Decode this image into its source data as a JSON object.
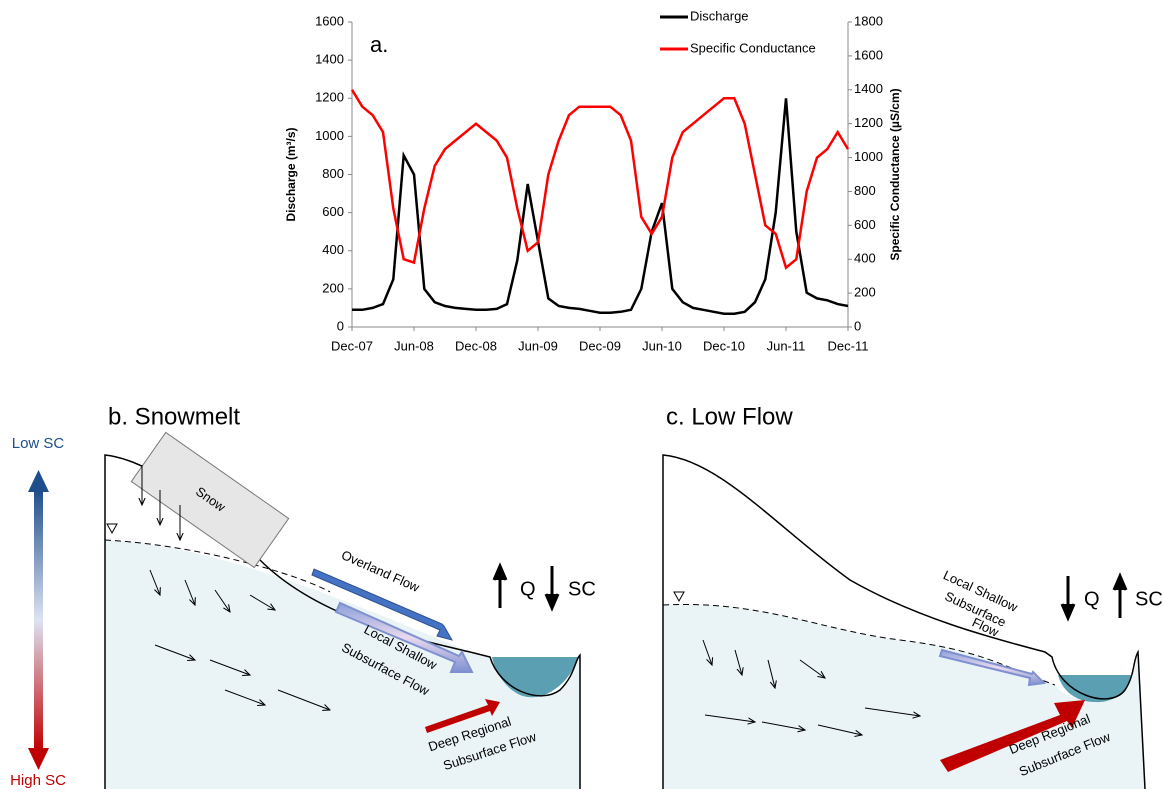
{
  "chart_data": {
    "type": "line",
    "panel_label": "a.",
    "y_label": "Discharge (m³/s)",
    "y2_label": "Specific Conductance (µS/cm)",
    "x": [
      "Dec-07",
      "Jan-08",
      "Feb-08",
      "Mar-08",
      "Apr-08",
      "May-08",
      "Jun-08",
      "Jul-08",
      "Aug-08",
      "Sep-08",
      "Oct-08",
      "Nov-08",
      "Dec-08",
      "Jan-09",
      "Feb-09",
      "Mar-09",
      "Apr-09",
      "May-09",
      "Jun-09",
      "Jul-09",
      "Aug-09",
      "Sep-09",
      "Oct-09",
      "Nov-09",
      "Dec-09",
      "Jan-10",
      "Feb-10",
      "Mar-10",
      "Apr-10",
      "May-10",
      "Jun-10",
      "Jul-10",
      "Aug-10",
      "Sep-10",
      "Oct-10",
      "Nov-10",
      "Dec-10",
      "Jan-11",
      "Feb-11",
      "Mar-11",
      "Apr-11",
      "May-11",
      "Jun-11",
      "Jul-11",
      "Aug-11",
      "Sep-11",
      "Oct-11",
      "Nov-11",
      "Dec-11"
    ],
    "xticks": [
      "Dec-07",
      "Jun-08",
      "Dec-08",
      "Jun-09",
      "Dec-09",
      "Jun-10",
      "Dec-10",
      "Jun-11",
      "Dec-11"
    ],
    "series": [
      {
        "name": "Discharge",
        "color": "#000000",
        "axis": "y",
        "values": [
          90,
          90,
          100,
          120,
          250,
          900,
          800,
          200,
          130,
          110,
          100,
          95,
          90,
          90,
          95,
          120,
          350,
          750,
          450,
          150,
          110,
          100,
          95,
          85,
          75,
          75,
          80,
          90,
          200,
          500,
          650,
          200,
          130,
          100,
          90,
          80,
          70,
          70,
          80,
          130,
          250,
          600,
          1200,
          500,
          180,
          150,
          140,
          120,
          110
        ]
      },
      {
        "name": "Specific Conductance",
        "color": "#ff0000",
        "axis": "y2",
        "values": [
          1400,
          1300,
          1250,
          1150,
          700,
          400,
          380,
          700,
          950,
          1050,
          1100,
          1150,
          1200,
          1150,
          1100,
          1000,
          700,
          450,
          500,
          900,
          1100,
          1250,
          1300,
          1300,
          1300,
          1300,
          1250,
          1100,
          650,
          550,
          650,
          1000,
          1150,
          1200,
          1250,
          1300,
          1350,
          1350,
          1200,
          900,
          600,
          550,
          350,
          400,
          800,
          1000,
          1050,
          1150,
          1050
        ]
      }
    ],
    "ylim": [
      0,
      1600
    ],
    "yticks": [
      0,
      200,
      400,
      600,
      800,
      1000,
      1200,
      1400,
      1600
    ],
    "y2lim": [
      0,
      1800
    ],
    "y2ticks": [
      0,
      200,
      400,
      600,
      800,
      1000,
      1200,
      1400,
      1600,
      1800
    ],
    "grid": false,
    "legend": "top-right"
  },
  "diagrams": {
    "scale": {
      "top": "Low SC",
      "bottom": "High SC"
    },
    "snowmelt": {
      "title": "b. Snowmelt",
      "snow": "Snow",
      "overland": "Overland Flow",
      "shallow": [
        "Local Shallow",
        "Subsurface  Flow"
      ],
      "deep": [
        "Deep Regional",
        "Subsurface Flow"
      ],
      "q": "Q",
      "sc": "SC"
    },
    "low_flow": {
      "title": "c. Low Flow",
      "shallow": [
        "Local Shallow",
        "Subsurface",
        "Flow"
      ],
      "deep": [
        "Deep Regional",
        "Subsurface Flow"
      ],
      "q": "Q",
      "sc": "SC"
    }
  }
}
